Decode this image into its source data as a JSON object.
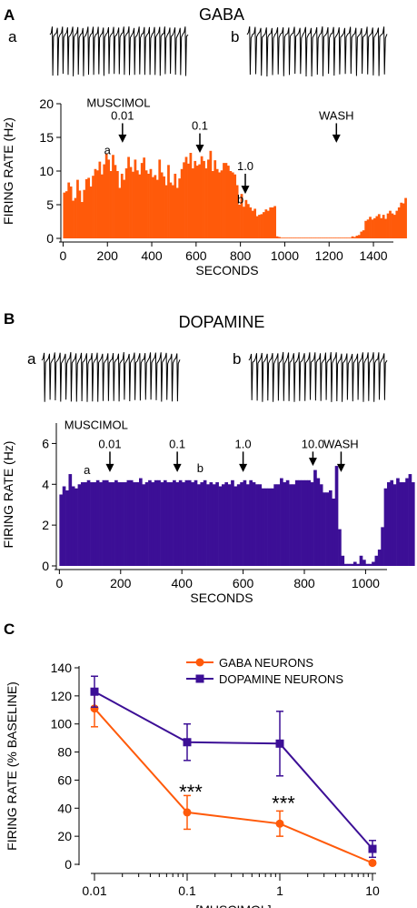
{
  "panels": {
    "A": {
      "letter": "A",
      "title": "GABA",
      "trace_a_label": "a",
      "trace_b_label": "b"
    },
    "B": {
      "letter": "B",
      "title": "DOPAMINE",
      "trace_a_label": "a",
      "trace_b_label": "b"
    },
    "C": {
      "letter": "C"
    }
  },
  "colors": {
    "gaba": "#ff5a0a",
    "dopamine": "#3c0f96",
    "trace": "#000000"
  },
  "chart_data": [
    {
      "id": "gaba_hist",
      "type": "bar",
      "xlabel": "SECONDS",
      "ylabel": "FIRING RATE (Hz)",
      "xlim": [
        -10,
        1490
      ],
      "ylim": [
        0,
        20
      ],
      "xticks": [
        0,
        200,
        400,
        600,
        800,
        1000,
        1200,
        1400
      ],
      "yticks": [
        0,
        5,
        10,
        15,
        20
      ],
      "bin_seconds": 10,
      "values": [
        6.8,
        7.0,
        8.3,
        7.7,
        5.6,
        6.0,
        8.7,
        7.1,
        5.4,
        7.2,
        8.8,
        9.0,
        7.7,
        9.3,
        10.3,
        10.1,
        11.4,
        9.5,
        11.0,
        12.6,
        11.7,
        10.0,
        12.4,
        10.9,
        10.0,
        7.5,
        9.6,
        8.7,
        10.4,
        12.1,
        10.6,
        9.9,
        11.7,
        10.1,
        9.5,
        11.2,
        12.0,
        10.1,
        9.6,
        10.3,
        9.1,
        9.4,
        8.7,
        11.7,
        9.8,
        9.2,
        7.9,
        10.9,
        8.3,
        7.9,
        9.6,
        7.5,
        8.9,
        10.3,
        11.3,
        12.1,
        11.1,
        12.7,
        10.4,
        11.5,
        10.8,
        11.0,
        12.2,
        11.5,
        10.4,
        11.7,
        13.0,
        10.0,
        11.6,
        10.3,
        9.8,
        10.1,
        11.2,
        11.2,
        10.8,
        10.0,
        9.8,
        9.5,
        7.9,
        5.0,
        6.6,
        4.7,
        5.7,
        5.1,
        4.6,
        4.1,
        4.4,
        3.3,
        3.5,
        3.6,
        3.9,
        4.3,
        4.1,
        4.6,
        4.6,
        4.8,
        0.3,
        0.2,
        0.1,
        0.1,
        0.1,
        0.1,
        0.1,
        0.1,
        0.1,
        0.1,
        0.1,
        0.1,
        0.1,
        0.1,
        0.1,
        0.1,
        0.1,
        0.1,
        0.1,
        0.1,
        0.1,
        0.1,
        0.1,
        0.1,
        0.1,
        0.1,
        0.1,
        0.1,
        0.1,
        0.1,
        0.1,
        0.1,
        0.1,
        0.1,
        0.3,
        0.2,
        0.4,
        0.5,
        1.0,
        1.2,
        2.6,
        2.8,
        3.2,
        2.8,
        3.0,
        3.3,
        3.6,
        3.0,
        3.5,
        2.9,
        3.7,
        4.1,
        3.7,
        3.5,
        4.1,
        4.6,
        5.3,
        5.2,
        6.0
      ],
      "annotations": [
        {
          "text": "MUSCIMOL",
          "x": 250,
          "y": 19.5
        },
        {
          "text": "a",
          "x": 200,
          "y": 12.5
        },
        {
          "text": "b",
          "x": 800,
          "y": 5.2
        }
      ],
      "arrows": [
        {
          "label": "0.01",
          "x": 268,
          "top": 17.1,
          "tip": 14.2
        },
        {
          "label": "0.1",
          "x": 617,
          "top": 15.6,
          "tip": 12.7
        },
        {
          "label": "1.0",
          "x": 822,
          "top": 9.6,
          "tip": 6.6
        },
        {
          "label": "WASH",
          "x": 1233,
          "top": 17.1,
          "tip": 14.2
        }
      ]
    },
    {
      "id": "dopamine_hist",
      "type": "bar",
      "xlabel": "SECONDS",
      "ylabel": "FIRING RATE (Hz)",
      "xlim": [
        -10,
        1070
      ],
      "ylim": [
        0,
        7
      ],
      "xticks": [
        0,
        200,
        400,
        600,
        800,
        1000
      ],
      "yticks": [
        0,
        2,
        4,
        6
      ],
      "bin_seconds": 10,
      "values": [
        3.5,
        3.9,
        3.7,
        4.5,
        3.9,
        3.8,
        4.0,
        4.1,
        4.1,
        4.2,
        4.1,
        4.1,
        4.2,
        4.1,
        4.2,
        4.2,
        4.1,
        4.1,
        4.2,
        4.1,
        4.1,
        4.1,
        4.2,
        4.2,
        4.1,
        4.1,
        4.3,
        4.0,
        4.1,
        4.2,
        4.1,
        4.2,
        4.2,
        4.1,
        4.2,
        4.1,
        4.1,
        4.2,
        4.1,
        4.2,
        4.1,
        4.2,
        4.2,
        4.1,
        4.2,
        4.0,
        4.1,
        4.2,
        4.0,
        4.1,
        4.0,
        4.1,
        3.9,
        4.0,
        4.1,
        4.0,
        4.2,
        3.9,
        4.0,
        4.1,
        4.2,
        4.0,
        4.2,
        4.1,
        4.0,
        4.0,
        3.8,
        3.8,
        3.8,
        3.8,
        4.0,
        4.0,
        4.3,
        4.1,
        4.2,
        4.0,
        4.0,
        4.2,
        4.2,
        4.2,
        4.2,
        4.2,
        4.1,
        4.7,
        4.3,
        4.0,
        3.6,
        3.6,
        3.7,
        3.3,
        4.9,
        1.8,
        0.5,
        0.1,
        0.1,
        0.1,
        0.2,
        0.1,
        0.5,
        0.3,
        0.1,
        0.1,
        0.2,
        0.5,
        0.8,
        1.9,
        3.8,
        4.1,
        4.2,
        4.0,
        4.3,
        4.1,
        4.1,
        4.3,
        4.5,
        4.1
      ],
      "annotations": [
        {
          "text": "MUSCIMOL",
          "x": 120,
          "y": 6.7
        },
        {
          "text": "a",
          "x": 90,
          "y": 4.5
        },
        {
          "text": "b",
          "x": 460,
          "y": 4.6
        }
      ],
      "arrows": [
        {
          "label": "0.01",
          "x": 165,
          "top": 5.6,
          "tip": 4.6
        },
        {
          "label": "0.1",
          "x": 385,
          "top": 5.6,
          "tip": 4.6
        },
        {
          "label": "1.0",
          "x": 600,
          "top": 5.6,
          "tip": 4.6
        },
        {
          "label": "10.0",
          "x": 828,
          "top": 5.6,
          "tip": 4.9
        },
        {
          "label": "WASH",
          "x": 920,
          "top": 5.6,
          "tip": 4.6
        }
      ]
    },
    {
      "id": "dose_response",
      "type": "line",
      "xlabel": "[MUSCIMOL]",
      "ylabel": "FIRING RATE (% BASELINE)",
      "xscale": "log",
      "xlim": [
        0.01,
        10
      ],
      "ylim": [
        0,
        140
      ],
      "xticks": [
        0.01,
        0.1,
        1,
        10
      ],
      "xticklabels": [
        "0.01",
        "0.1",
        "1",
        "10"
      ],
      "yticks": [
        0,
        20,
        40,
        60,
        80,
        100,
        120,
        140
      ],
      "legend_position": "top-right",
      "series": [
        {
          "name": "GABA NEURONS",
          "x": [
            0.01,
            0.1,
            1,
            10
          ],
          "y": [
            111,
            37,
            29,
            1
          ],
          "err": [
            13,
            12,
            9,
            1
          ],
          "marker": "circle"
        },
        {
          "name": "DOPAMINE NEURONS",
          "x": [
            0.01,
            0.1,
            1,
            10
          ],
          "y": [
            123,
            87,
            86,
            11
          ],
          "err": [
            11,
            13,
            23,
            6
          ],
          "marker": "square"
        }
      ],
      "annotations": [
        {
          "text": "***",
          "x": 0.1,
          "y": 53
        },
        {
          "text": "***",
          "x": 1,
          "y": 45
        }
      ]
    }
  ]
}
